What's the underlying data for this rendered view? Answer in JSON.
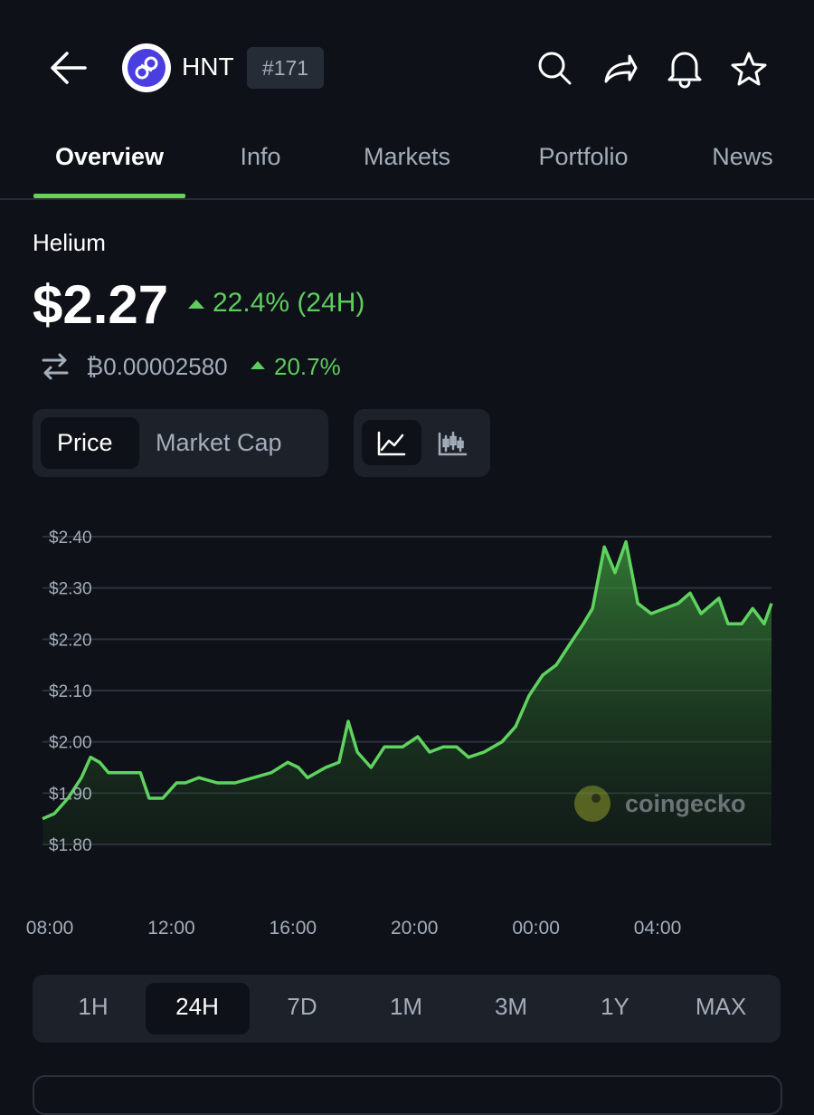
{
  "header": {
    "symbol": "HNT",
    "rank": "#171"
  },
  "tabs": [
    "Overview",
    "Info",
    "Markets",
    "Portfolio",
    "News"
  ],
  "coin": {
    "name": "Helium",
    "price": "$2.27",
    "change_24h": "22.4% (24H)",
    "btc_price": "₿0.00002580",
    "btc_change": "20.7%"
  },
  "chart_toggle": [
    "Price",
    "Market Cap"
  ],
  "chart_data": {
    "type": "line",
    "color": "#5fd35f",
    "grid": true,
    "watermark": "coingecko",
    "x": [
      7.76,
      8.15,
      8.6,
      9.04,
      9.34,
      9.64,
      9.93,
      10.38,
      10.98,
      11.27,
      11.72,
      12.17,
      12.46,
      12.91,
      13.51,
      14.1,
      14.7,
      15.29,
      15.83,
      16.18,
      16.48,
      17.08,
      17.52,
      17.82,
      18.12,
      18.57,
      19.01,
      19.61,
      20.11,
      20.5,
      20.95,
      21.39,
      21.78,
      22.29,
      22.88,
      23.33,
      23.77,
      24.22,
      24.67,
      25.11,
      25.56,
      25.86,
      26.25,
      26.6,
      26.96,
      27.35,
      27.79,
      28.24,
      28.68,
      29.07,
      29.43,
      30.02,
      30.32,
      30.77,
      31.13,
      31.51,
      31.75
    ],
    "values": [
      1.85,
      1.86,
      1.89,
      1.93,
      1.97,
      1.96,
      1.94,
      1.94,
      1.94,
      1.89,
      1.89,
      1.92,
      1.92,
      1.93,
      1.92,
      1.92,
      1.93,
      1.94,
      1.96,
      1.95,
      1.93,
      1.95,
      1.96,
      2.04,
      1.98,
      1.95,
      1.99,
      1.99,
      2.01,
      1.98,
      1.99,
      1.99,
      1.97,
      1.98,
      2.0,
      2.03,
      2.09,
      2.13,
      2.15,
      2.19,
      2.23,
      2.26,
      2.38,
      2.33,
      2.39,
      2.27,
      2.25,
      2.26,
      2.27,
      2.29,
      2.25,
      2.28,
      2.23,
      2.23,
      2.26,
      2.23,
      2.27
    ],
    "xlim": [
      7.76,
      31.75
    ],
    "xticks": [
      {
        "value": 8,
        "label": "08:00"
      },
      {
        "value": 12,
        "label": "12:00"
      },
      {
        "value": 16,
        "label": "16:00"
      },
      {
        "value": 20,
        "label": "20:00"
      },
      {
        "value": 24,
        "label": "00:00"
      },
      {
        "value": 28,
        "label": "04:00"
      }
    ],
    "ylim": [
      1.8,
      2.4
    ],
    "yticks": [
      {
        "value": 2.4,
        "label": "$2.40"
      },
      {
        "value": 2.3,
        "label": "$2.30"
      },
      {
        "value": 2.2,
        "label": "$2.20"
      },
      {
        "value": 2.1,
        "label": "$2.10"
      },
      {
        "value": 2.0,
        "label": "$2.00"
      },
      {
        "value": 1.9,
        "label": "$1.90"
      },
      {
        "value": 1.8,
        "label": "$1.80"
      }
    ]
  },
  "time_ranges": [
    "1H",
    "24H",
    "7D",
    "1M",
    "3M",
    "1Y",
    "MAX"
  ]
}
